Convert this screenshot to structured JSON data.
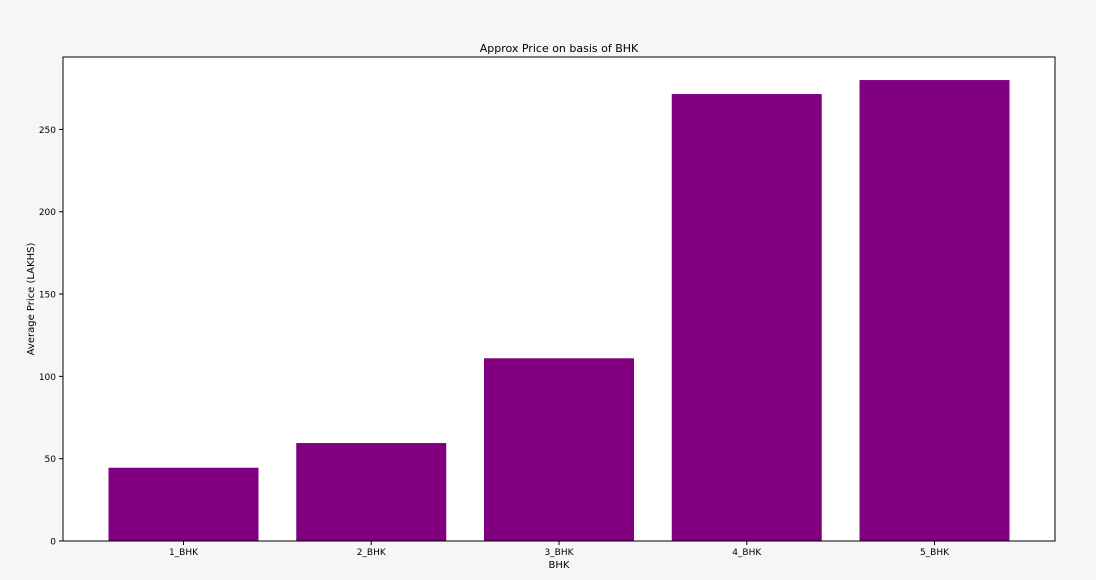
{
  "chart_data": {
    "type": "bar",
    "title": "Approx Price on basis of BHK",
    "xlabel": "BHK",
    "ylabel": "Average Price (LAKHS)",
    "categories": [
      "1_BHK",
      "2_BHK",
      "3_BHK",
      "4_BHK",
      "5_BHK"
    ],
    "values": [
      44.5,
      59.5,
      111,
      271.5,
      280
    ],
    "ylim": [
      0,
      294
    ],
    "yticks": [
      0,
      50,
      100,
      150,
      200,
      250
    ],
    "grid": false,
    "legend": "none",
    "colors": {
      "bar": "#800080",
      "figure_background": "#f6f6f6",
      "plot_background": "#ffffff",
      "axes": "#000000"
    }
  }
}
